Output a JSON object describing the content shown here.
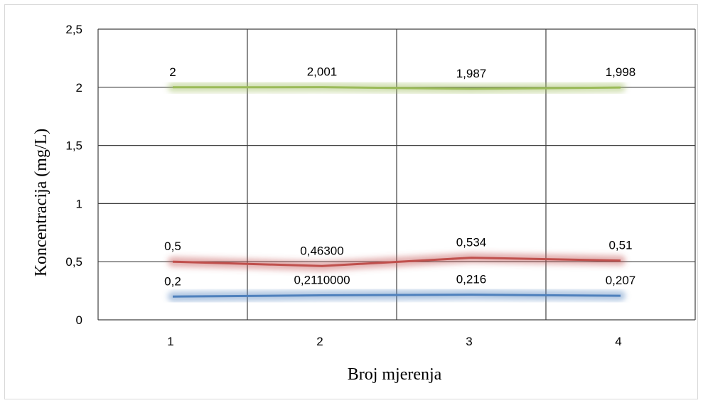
{
  "chart_data": {
    "type": "line",
    "title": "",
    "xlabel": "Broj mjerenja",
    "ylabel": "Koncentracija (mg/L)",
    "categories": [
      "1",
      "2",
      "3",
      "4"
    ],
    "ylim": [
      0,
      2.5
    ],
    "yticks": [
      {
        "value": 0,
        "label": "0"
      },
      {
        "value": 0.5,
        "label": "0,5"
      },
      {
        "value": 1,
        "label": "1"
      },
      {
        "value": 1.5,
        "label": "1,5"
      },
      {
        "value": 2,
        "label": "2"
      },
      {
        "value": 2.5,
        "label": "2,5"
      }
    ],
    "grid": true,
    "legend": "none",
    "series": [
      {
        "color": "#9BBB59",
        "values": [
          2,
          2.001,
          1.987,
          1.998
        ],
        "labels": [
          "2",
          "2,001",
          "1,987",
          "1,998"
        ]
      },
      {
        "color": "#C0504D",
        "values": [
          0.5,
          0.463,
          0.534,
          0.51
        ],
        "labels": [
          "0,5",
          "0,46300",
          "0,534",
          "0,51"
        ]
      },
      {
        "color": "#4F81BD",
        "values": [
          0.2,
          0.211,
          0.216,
          0.207
        ],
        "labels": [
          "0,2",
          "0,2110000",
          "0,216",
          "0,207"
        ]
      }
    ]
  }
}
